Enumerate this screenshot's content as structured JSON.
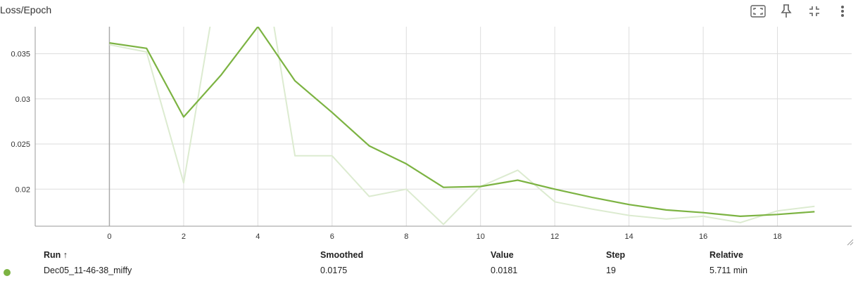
{
  "card": {
    "title": "Loss/Epoch",
    "toolbar": [
      {
        "name": "fit-domain-icon"
      },
      {
        "name": "pin-icon"
      },
      {
        "name": "collapse-icon"
      },
      {
        "name": "more-vert-icon"
      }
    ]
  },
  "colors": {
    "smoothed_line": "#7cb342",
    "raw_line": "#dcebd0",
    "grid": "#dddddd",
    "axis": "#999999"
  },
  "chart_data": {
    "type": "line",
    "title": "Loss/Epoch",
    "xlim": [
      -2,
      20
    ],
    "ylim": [
      0.0159,
      0.038
    ],
    "x_ticks": [
      0,
      2,
      4,
      6,
      8,
      10,
      12,
      14,
      16,
      18
    ],
    "y_ticks": [
      0.02,
      0.025,
      0.03,
      0.035
    ],
    "grid": true,
    "series": [
      {
        "role": "smoothed",
        "name": "Dec05_11-46-38_miffy",
        "x": [
          0,
          1,
          2,
          3,
          4,
          5,
          6,
          7,
          8,
          9,
          10,
          11,
          12,
          13,
          14,
          15,
          16,
          17,
          18,
          19
        ],
        "values": [
          0.0362,
          0.0356,
          0.028,
          0.0326,
          0.038,
          0.032,
          0.0285,
          0.0248,
          0.0228,
          0.0202,
          0.0203,
          0.021,
          0.02,
          0.0191,
          0.0183,
          0.0177,
          0.0174,
          0.017,
          0.0172,
          0.0175
        ]
      },
      {
        "role": "raw",
        "name": "Dec05_11-46-38_miffy",
        "x": [
          0,
          1,
          2,
          3,
          4,
          5,
          6,
          7,
          8,
          9,
          10,
          11,
          12,
          13,
          14,
          15,
          16,
          17,
          18,
          19
        ],
        "values": [
          0.036,
          0.0352,
          0.0207,
          0.045,
          0.049,
          0.0237,
          0.0237,
          0.0192,
          0.02,
          0.0161,
          0.0203,
          0.0221,
          0.0186,
          0.0178,
          0.0171,
          0.0167,
          0.017,
          0.0163,
          0.0176,
          0.0181
        ]
      }
    ]
  },
  "table": {
    "headers": {
      "run": "Run ↑",
      "smoothed": "Smoothed",
      "value": "Value",
      "step": "Step",
      "relative": "Relative"
    },
    "rows": [
      {
        "run": "Dec05_11-46-38_miffy",
        "smoothed": "0.0175",
        "value": "0.0181",
        "step": "19",
        "relative": "5.711 min",
        "color": "#7cb342"
      }
    ]
  }
}
